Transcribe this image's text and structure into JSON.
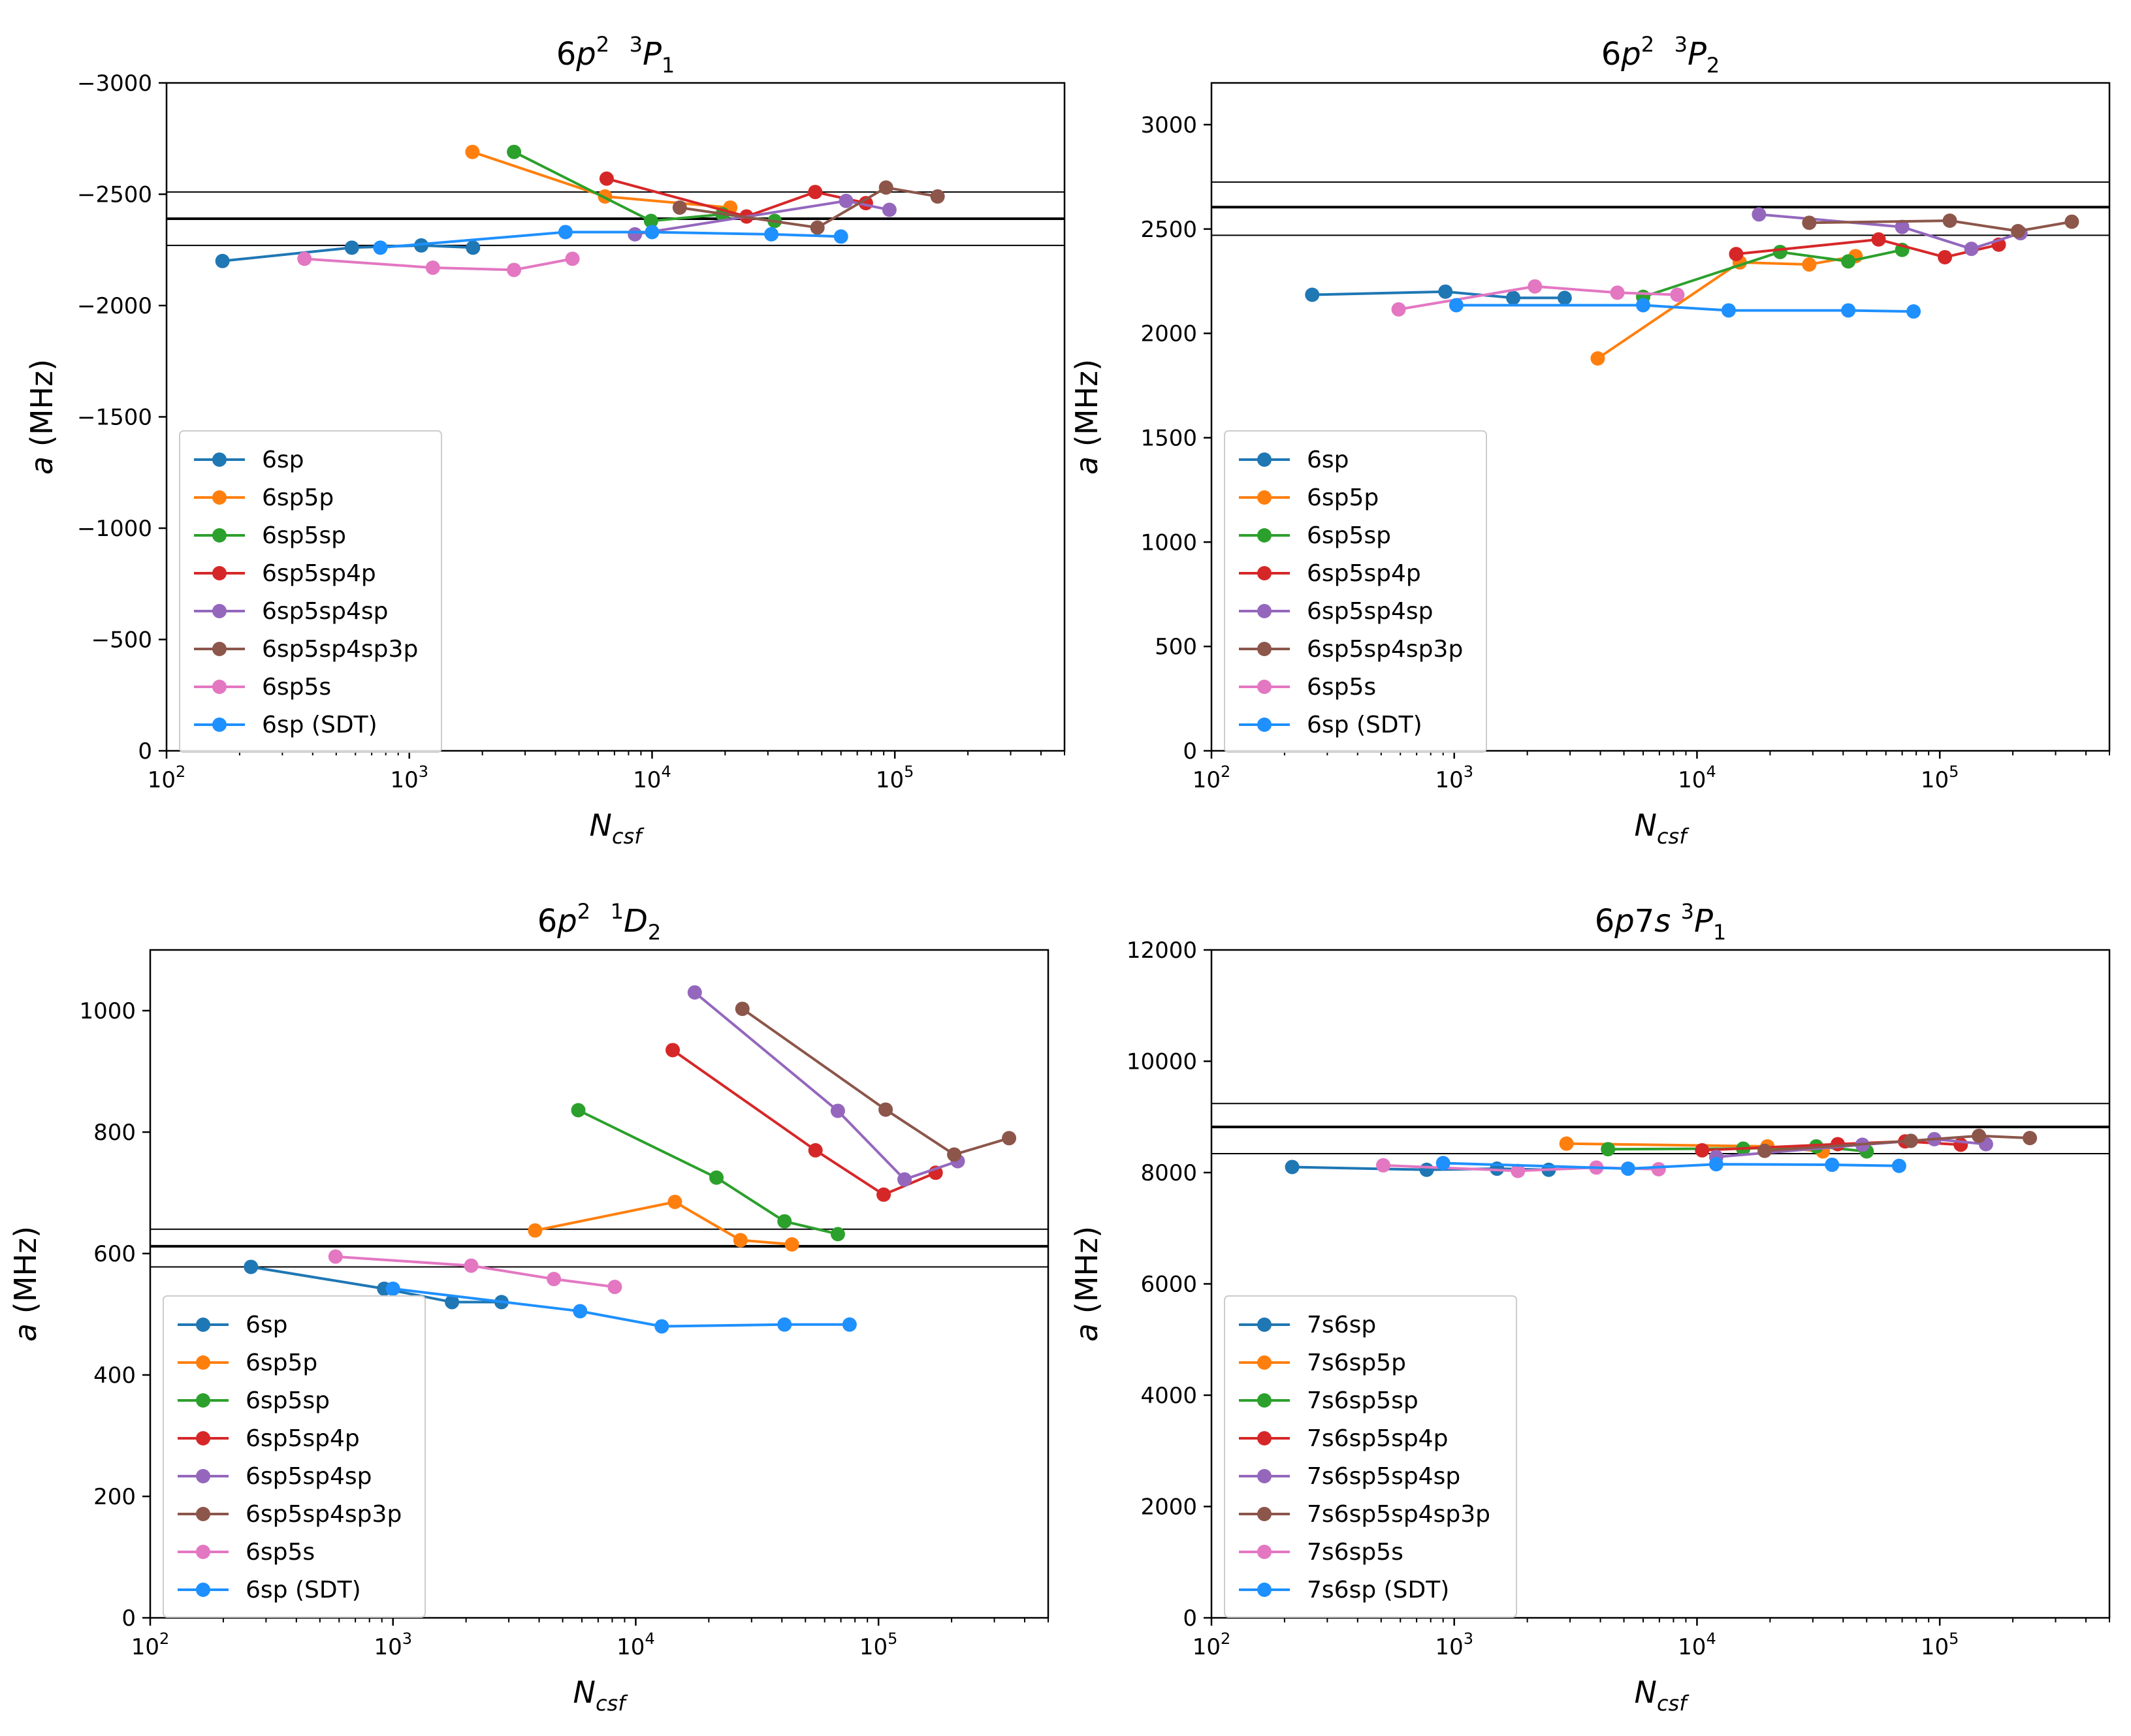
{
  "colors": {
    "C0": "#1f77b4",
    "C1": "#ff7f0e",
    "C2": "#2ca02c",
    "C3": "#d62728",
    "C4": "#9467bd",
    "C5": "#8c564b",
    "C6": "#e377c2",
    "C7": "#1e90ff",
    "reference": "#000000"
  },
  "chart_data": [
    {
      "type": "line",
      "title": {
        "base": "6",
        "italic": "p",
        "sup1": "2",
        "sup2": "3",
        "term": "P",
        "sub": "1"
      },
      "xlabel": {
        "main": "N",
        "sub": "csf"
      },
      "ylabel": {
        "italic": "a",
        "rest": " (MHz)"
      },
      "xscale": "log",
      "xlim": [
        100,
        500000
      ],
      "ylim": [
        0,
        -3000
      ],
      "yticks": [
        0,
        -500,
        -1000,
        -1500,
        -2000,
        -2500,
        -3000
      ],
      "ytick_labels": [
        "0",
        "−500",
        "−1000",
        "−1500",
        "−2000",
        "−2500",
        "−3000"
      ],
      "xticks": [
        100,
        1000,
        10000,
        100000
      ],
      "xtick_labels": [
        {
          "b": "10",
          "e": "2"
        },
        {
          "b": "10",
          "e": "3"
        },
        {
          "b": "10",
          "e": "4"
        },
        {
          "b": "10",
          "e": "5"
        }
      ],
      "hlines": [
        {
          "y": -2510,
          "w": 2
        },
        {
          "y": -2390,
          "w": 4
        },
        {
          "y": -2270,
          "w": 2
        }
      ],
      "legend_loc": "lower left",
      "series": [
        {
          "name": "6sp",
          "color": "C0",
          "x": [
            170,
            580,
            1120,
            1830
          ],
          "y": [
            -2200,
            -2260,
            -2270,
            -2260
          ]
        },
        {
          "name": "6sp5p",
          "color": "C1",
          "x": [
            1820,
            6400,
            21000
          ],
          "y": [
            -2690,
            -2490,
            -2440
          ]
        },
        {
          "name": "6sp5sp",
          "color": "C2",
          "x": [
            2700,
            9900,
            19500,
            32000
          ],
          "y": [
            -2690,
            -2380,
            -2410,
            -2380
          ]
        },
        {
          "name": "6sp5sp4p",
          "color": "C3",
          "x": [
            6500,
            24500,
            47000,
            76000
          ],
          "y": [
            -2570,
            -2400,
            -2510,
            -2460
          ]
        },
        {
          "name": "6sp5sp4sp",
          "color": "C4",
          "x": [
            8500,
            63000,
            95000
          ],
          "y": [
            -2320,
            -2470,
            -2430
          ]
        },
        {
          "name": "6sp5sp4sp3p",
          "color": "C5",
          "x": [
            13000,
            48000,
            92000,
            150000
          ],
          "y": [
            -2440,
            -2350,
            -2530,
            -2490
          ]
        },
        {
          "name": "6sp5s",
          "color": "C6",
          "x": [
            370,
            1250,
            2700,
            4700
          ],
          "y": [
            -2210,
            -2170,
            -2160,
            -2210
          ]
        },
        {
          "name": "6sp (SDT)",
          "color": "C7",
          "x": [
            760,
            4400,
            10000,
            31000,
            60000
          ],
          "y": [
            -2260,
            -2330,
            -2330,
            -2320,
            -2310
          ]
        }
      ]
    },
    {
      "type": "line",
      "title": {
        "base": "6",
        "italic": "p",
        "sup1": "2",
        "sup2": "3",
        "term": "P",
        "sub": "2"
      },
      "xlabel": {
        "main": "N",
        "sub": "csf"
      },
      "ylabel": {
        "italic": "a",
        "rest": " (MHz)"
      },
      "xscale": "log",
      "xlim": [
        100,
        500000
      ],
      "ylim": [
        0,
        3200
      ],
      "yticks": [
        0,
        500,
        1000,
        1500,
        2000,
        2500,
        3000
      ],
      "ytick_labels": [
        "0",
        "500",
        "1000",
        "1500",
        "2000",
        "2500",
        "3000"
      ],
      "xticks": [
        100,
        1000,
        10000,
        100000
      ],
      "xtick_labels": [
        {
          "b": "10",
          "e": "2"
        },
        {
          "b": "10",
          "e": "3"
        },
        {
          "b": "10",
          "e": "4"
        },
        {
          "b": "10",
          "e": "5"
        }
      ],
      "hlines": [
        {
          "y": 2725,
          "w": 2
        },
        {
          "y": 2605,
          "w": 4
        },
        {
          "y": 2470,
          "w": 2
        }
      ],
      "legend_loc": "lower left",
      "series": [
        {
          "name": "6sp",
          "color": "C0",
          "x": [
            260,
            920,
            1750,
            2850
          ],
          "y": [
            2185,
            2200,
            2170,
            2170
          ]
        },
        {
          "name": "6sp5p",
          "color": "C1",
          "x": [
            3900,
            15000,
            29000,
            45000
          ],
          "y": [
            1880,
            2340,
            2330,
            2370
          ]
        },
        {
          "name": "6sp5sp",
          "color": "C2",
          "x": [
            6000,
            22000,
            42000,
            70000
          ],
          "y": [
            2175,
            2390,
            2345,
            2400
          ]
        },
        {
          "name": "6sp5sp4p",
          "color": "C3",
          "x": [
            14500,
            56000,
            105000,
            175000
          ],
          "y": [
            2380,
            2450,
            2365,
            2425
          ]
        },
        {
          "name": "6sp5sp4sp",
          "color": "C4",
          "x": [
            18000,
            70000,
            135000,
            215000
          ],
          "y": [
            2570,
            2510,
            2405,
            2480
          ]
        },
        {
          "name": "6sp5sp4sp3p",
          "color": "C5",
          "x": [
            29000,
            110000,
            210000,
            350000
          ],
          "y": [
            2530,
            2540,
            2490,
            2535
          ]
        },
        {
          "name": "6sp5s",
          "color": "C6",
          "x": [
            590,
            2150,
            4700,
            8300
          ],
          "y": [
            2115,
            2225,
            2195,
            2185
          ]
        },
        {
          "name": "6sp (SDT)",
          "color": "C7",
          "x": [
            1020,
            6000,
            13500,
            42000,
            78000
          ],
          "y": [
            2135,
            2135,
            2110,
            2110,
            2105
          ]
        }
      ]
    },
    {
      "type": "line",
      "title": {
        "base": "6",
        "italic": "p",
        "sup1": "2",
        "sup2": "1",
        "term": "D",
        "sub": "2"
      },
      "xlabel": {
        "main": "N",
        "sub": "csf"
      },
      "ylabel": {
        "italic": "a",
        "rest": " (MHz)"
      },
      "xscale": "log",
      "xlim": [
        100,
        500000
      ],
      "ylim": [
        0,
        1100
      ],
      "yticks": [
        0,
        200,
        400,
        600,
        800,
        1000
      ],
      "ytick_labels": [
        "0",
        "200",
        "400",
        "600",
        "800",
        "1000"
      ],
      "xticks": [
        100,
        1000,
        10000,
        100000
      ],
      "xtick_labels": [
        {
          "b": "10",
          "e": "2"
        },
        {
          "b": "10",
          "e": "3"
        },
        {
          "b": "10",
          "e": "4"
        },
        {
          "b": "10",
          "e": "5"
        }
      ],
      "hlines": [
        {
          "y": 640,
          "w": 2
        },
        {
          "y": 612,
          "w": 4
        },
        {
          "y": 578,
          "w": 2
        }
      ],
      "legend_loc": "lower left",
      "series": [
        {
          "name": "6sp",
          "color": "C0",
          "x": [
            260,
            920,
            1750,
            2800
          ],
          "y": [
            578,
            542,
            520,
            520
          ]
        },
        {
          "name": "6sp5p",
          "color": "C1",
          "x": [
            3850,
            14500,
            27000,
            44000
          ],
          "y": [
            638,
            685,
            622,
            615
          ]
        },
        {
          "name": "6sp5sp",
          "color": "C2",
          "x": [
            5800,
            21500,
            41000,
            68000
          ],
          "y": [
            836,
            725,
            653,
            632
          ]
        },
        {
          "name": "6sp5sp4p",
          "color": "C3",
          "x": [
            14200,
            55000,
            105000,
            172000
          ],
          "y": [
            935,
            770,
            697,
            733
          ]
        },
        {
          "name": "6sp5sp4sp",
          "color": "C4",
          "x": [
            17500,
            68000,
            128000,
            212000
          ],
          "y": [
            1030,
            835,
            722,
            752
          ]
        },
        {
          "name": "6sp5sp4sp3p",
          "color": "C5",
          "x": [
            27500,
            107000,
            205000,
            345000
          ],
          "y": [
            1003,
            837,
            763,
            790
          ]
        },
        {
          "name": "6sp5s",
          "color": "C6",
          "x": [
            580,
            2100,
            4600,
            8200
          ],
          "y": [
            595,
            580,
            558,
            545
          ]
        },
        {
          "name": "6sp (SDT)",
          "color": "C7",
          "x": [
            1000,
            5900,
            12800,
            41000,
            76000
          ],
          "y": [
            542,
            505,
            480,
            483,
            483
          ]
        }
      ]
    },
    {
      "type": "line",
      "title": {
        "base": "6",
        "italic": "p",
        "mid": "7",
        "italic2": "s",
        "sup2": "3",
        "term": "P",
        "sub": "1"
      },
      "xlabel": {
        "main": "N",
        "sub": "csf"
      },
      "ylabel": {
        "italic": "a",
        "rest": " (MHz)"
      },
      "xscale": "log",
      "xlim": [
        100,
        500000
      ],
      "ylim": [
        0,
        12000
      ],
      "yticks": [
        0,
        2000,
        4000,
        6000,
        8000,
        10000,
        12000
      ],
      "ytick_labels": [
        "0",
        "2000",
        "4000",
        "6000",
        "8000",
        "10000",
        "12000"
      ],
      "xticks": [
        100,
        1000,
        10000,
        100000
      ],
      "xtick_labels": [
        {
          "b": "10",
          "e": "2"
        },
        {
          "b": "10",
          "e": "3"
        },
        {
          "b": "10",
          "e": "4"
        },
        {
          "b": "10",
          "e": "5"
        }
      ],
      "hlines": [
        {
          "y": 9240,
          "w": 2
        },
        {
          "y": 8820,
          "w": 4
        },
        {
          "y": 8340,
          "w": 2
        }
      ],
      "legend_loc": "lower left",
      "series": [
        {
          "name": "7s6sp",
          "color": "C0",
          "x": [
            215,
            770,
            1500,
            2450
          ],
          "y": [
            8100,
            8050,
            8070,
            8050
          ]
        },
        {
          "name": "7s6sp5p",
          "color": "C1",
          "x": [
            2900,
            19500,
            33000
          ],
          "y": [
            8520,
            8470,
            8380
          ]
        },
        {
          "name": "7s6sp5sp",
          "color": "C2",
          "x": [
            4300,
            15500,
            31000,
            50000
          ],
          "y": [
            8420,
            8430,
            8470,
            8380
          ]
        },
        {
          "name": "7s6sp5sp4p",
          "color": "C3",
          "x": [
            10500,
            38000,
            72000,
            122000
          ],
          "y": [
            8400,
            8510,
            8560,
            8500
          ]
        },
        {
          "name": "7s6sp5sp4sp",
          "color": "C4",
          "x": [
            12000,
            48000,
            95000,
            155000
          ],
          "y": [
            8280,
            8500,
            8600,
            8510
          ]
        },
        {
          "name": "7s6sp5sp4sp3p",
          "color": "C5",
          "x": [
            19000,
            76000,
            145000,
            235000
          ],
          "y": [
            8390,
            8570,
            8660,
            8620
          ]
        },
        {
          "name": "7s6sp5s",
          "color": "C6",
          "x": [
            510,
            1830,
            3850,
            6950
          ],
          "y": [
            8130,
            8030,
            8090,
            8060
          ]
        },
        {
          "name": "7s6sp (SDT)",
          "color": "C7",
          "x": [
            900,
            5200,
            12000,
            36000,
            68000
          ],
          "y": [
            8170,
            8070,
            8150,
            8140,
            8120
          ]
        }
      ]
    }
  ]
}
